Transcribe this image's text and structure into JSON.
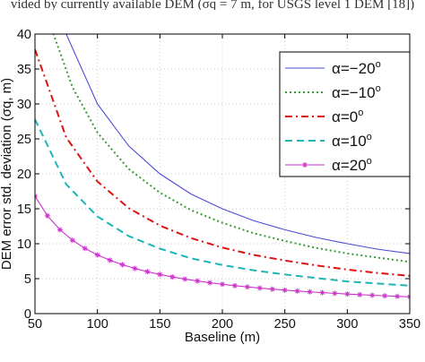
{
  "caption": "vided by currently available DEM (σq = 7 m, for USGS level 1 DEM [18])",
  "chart_data": {
    "type": "line",
    "title": "",
    "xlabel": "Baseline (m)",
    "ylabel": "DEM error std. deviation (σq, m)",
    "xlim": [
      50,
      350
    ],
    "ylim": [
      0,
      40
    ],
    "xticks": [
      "50",
      "100",
      "150",
      "200",
      "250",
      "300",
      "350"
    ],
    "yticks": [
      "0",
      "5",
      "10",
      "15",
      "20",
      "25",
      "30",
      "35",
      "40"
    ],
    "grid": true,
    "legend_position": "top-right",
    "series": [
      {
        "name": "α=−20°",
        "label_main": "α=−20",
        "label_sup": "o",
        "color": "#4b4bd6",
        "dash": "",
        "marker": "",
        "x": [
          50,
          75,
          100,
          125,
          150,
          175,
          200,
          225,
          250,
          275,
          300,
          325,
          350
        ],
        "y": [
          60,
          40,
          30,
          24,
          20,
          17.1,
          15,
          13.3,
          12,
          10.9,
          10,
          9.2,
          8.6
        ]
      },
      {
        "name": "α=−10°",
        "label_main": "α=−10",
        "label_sup": "o",
        "color": "#3a9a3a",
        "dash": "2,3",
        "marker": "",
        "x": [
          50,
          65,
          80,
          100,
          125,
          150,
          175,
          200,
          225,
          250,
          275,
          300,
          325,
          350
        ],
        "y": [
          48,
          39.9,
          32.4,
          25.9,
          20.7,
          17.3,
          14.8,
          13.0,
          11.5,
          10.4,
          9.4,
          8.6,
          8.0,
          7.4
        ]
      },
      {
        "name": "α=0°",
        "label_main": "α=0",
        "label_sup": "o",
        "color": "#dd1111",
        "dash": "8,4,2,4",
        "marker": "",
        "x": [
          50,
          75,
          100,
          125,
          150,
          175,
          200,
          225,
          250,
          275,
          300,
          325,
          350
        ],
        "y": [
          37.8,
          25.2,
          18.9,
          15.1,
          12.6,
          10.8,
          9.45,
          8.4,
          7.6,
          6.9,
          6.3,
          5.8,
          5.4
        ]
      },
      {
        "name": "α=10°",
        "label_main": "α=10",
        "label_sup": "o",
        "color": "#1cb5b5",
        "dash": "8,5",
        "marker": "",
        "x": [
          50,
          75,
          100,
          125,
          150,
          175,
          200,
          225,
          250,
          275,
          300,
          325,
          350
        ],
        "y": [
          27.8,
          18.5,
          13.9,
          11.1,
          9.3,
          7.9,
          6.95,
          6.2,
          5.6,
          5.1,
          4.6,
          4.3,
          4.0
        ]
      },
      {
        "name": "α=20°",
        "label_main": "α=20",
        "label_sup": "o",
        "color": "#cc33cc",
        "dash": "",
        "marker": "asterisk",
        "x": [
          50,
          60,
          70,
          80,
          90,
          100,
          110,
          120,
          130,
          140,
          150,
          160,
          170,
          180,
          190,
          200,
          210,
          220,
          230,
          240,
          250,
          260,
          270,
          280,
          290,
          300,
          310,
          320,
          330,
          340,
          350
        ],
        "y": [
          16.8,
          14.0,
          12.0,
          10.5,
          9.33,
          8.4,
          7.64,
          7.0,
          6.46,
          6.0,
          5.6,
          5.25,
          4.94,
          4.67,
          4.42,
          4.2,
          4.0,
          3.82,
          3.65,
          3.5,
          3.36,
          3.23,
          3.11,
          3.0,
          2.9,
          2.8,
          2.71,
          2.63,
          2.55,
          2.47,
          2.4
        ]
      }
    ]
  }
}
